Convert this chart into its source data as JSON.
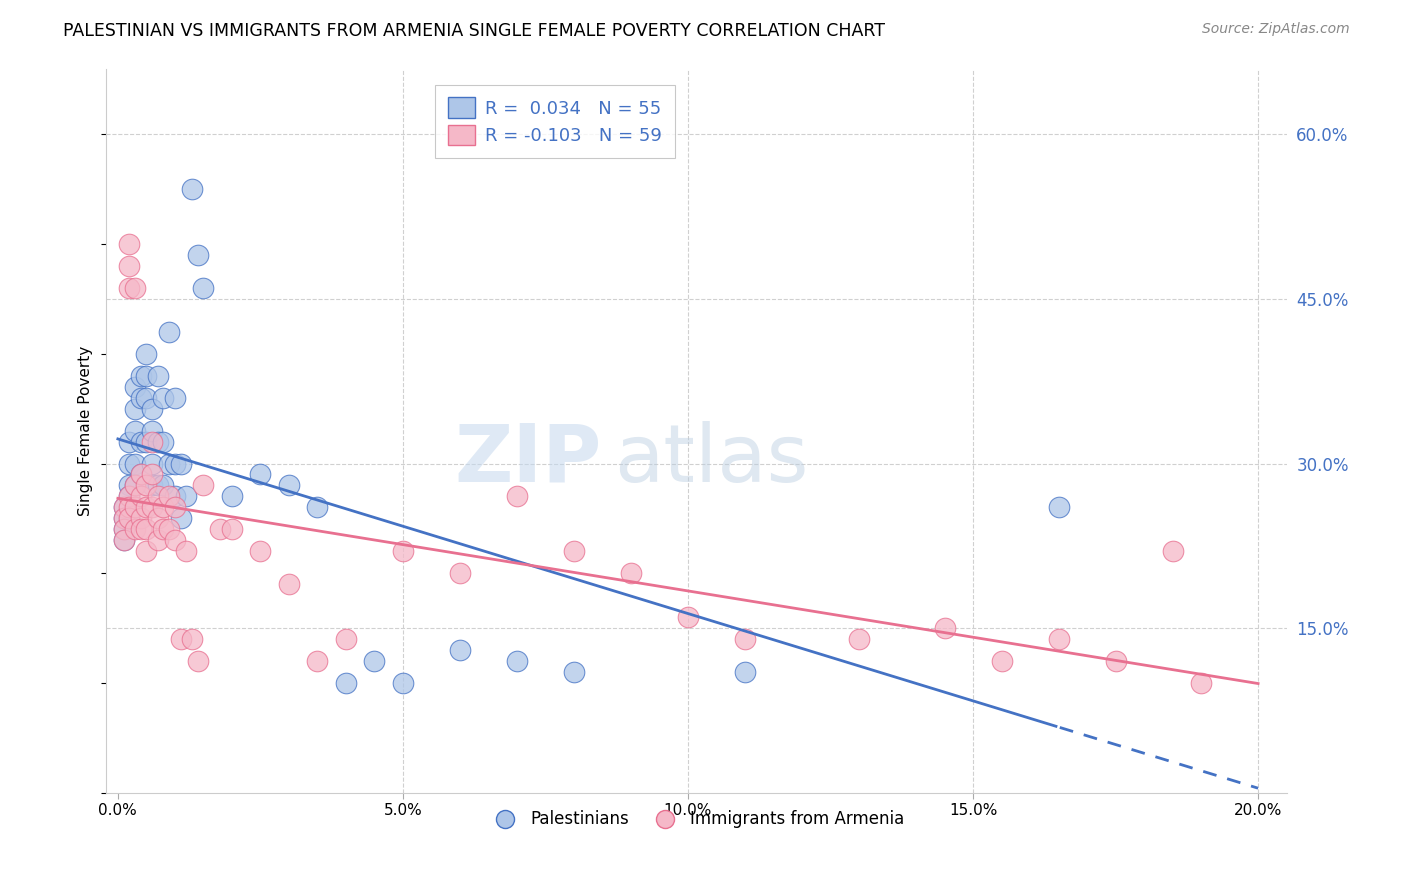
{
  "title": "PALESTINIAN VS IMMIGRANTS FROM ARMENIA SINGLE FEMALE POVERTY CORRELATION CHART",
  "source": "Source: ZipAtlas.com",
  "ylabel": "Single Female Poverty",
  "y_ticks": [
    0.15,
    0.3,
    0.45,
    0.6
  ],
  "y_tick_labels": [
    "15.0%",
    "30.0%",
    "45.0%",
    "60.0%"
  ],
  "x_ticks": [
    0.0,
    0.05,
    0.1,
    0.15,
    0.2
  ],
  "x_tick_labels": [
    "0.0%",
    "5.0%",
    "10.0%",
    "15.0%",
    "20.0%"
  ],
  "xlim": [
    -0.002,
    0.205
  ],
  "ylim": [
    0.0,
    0.66
  ],
  "blue_R": 0.034,
  "blue_N": 55,
  "pink_R": -0.103,
  "pink_N": 59,
  "blue_color": "#aec6e8",
  "pink_color": "#f5b8c8",
  "blue_line_color": "#4472c4",
  "pink_line_color": "#e87090",
  "legend_label_blue": "Palestinians",
  "legend_label_pink": "Immigrants from Armenia",
  "watermark_zip": "ZIP",
  "watermark_atlas": "atlas",
  "blue_x": [
    0.001,
    0.001,
    0.001,
    0.001,
    0.002,
    0.002,
    0.002,
    0.002,
    0.002,
    0.003,
    0.003,
    0.003,
    0.003,
    0.003,
    0.004,
    0.004,
    0.004,
    0.004,
    0.005,
    0.005,
    0.005,
    0.005,
    0.006,
    0.006,
    0.006,
    0.006,
    0.007,
    0.007,
    0.007,
    0.008,
    0.008,
    0.008,
    0.009,
    0.009,
    0.01,
    0.01,
    0.01,
    0.011,
    0.011,
    0.012,
    0.013,
    0.014,
    0.015,
    0.02,
    0.025,
    0.03,
    0.035,
    0.04,
    0.045,
    0.05,
    0.06,
    0.07,
    0.08,
    0.11,
    0.165
  ],
  "blue_y": [
    0.26,
    0.25,
    0.24,
    0.23,
    0.32,
    0.3,
    0.28,
    0.27,
    0.25,
    0.37,
    0.35,
    0.33,
    0.3,
    0.28,
    0.38,
    0.36,
    0.32,
    0.29,
    0.4,
    0.38,
    0.36,
    0.32,
    0.35,
    0.33,
    0.3,
    0.28,
    0.38,
    0.32,
    0.28,
    0.36,
    0.32,
    0.28,
    0.42,
    0.3,
    0.36,
    0.3,
    0.27,
    0.3,
    0.25,
    0.27,
    0.55,
    0.49,
    0.46,
    0.27,
    0.29,
    0.28,
    0.26,
    0.1,
    0.12,
    0.1,
    0.13,
    0.12,
    0.11,
    0.11,
    0.26
  ],
  "pink_x": [
    0.001,
    0.001,
    0.001,
    0.001,
    0.002,
    0.002,
    0.002,
    0.002,
    0.002,
    0.002,
    0.003,
    0.003,
    0.003,
    0.003,
    0.004,
    0.004,
    0.004,
    0.004,
    0.005,
    0.005,
    0.005,
    0.005,
    0.006,
    0.006,
    0.006,
    0.007,
    0.007,
    0.007,
    0.008,
    0.008,
    0.009,
    0.009,
    0.01,
    0.01,
    0.011,
    0.012,
    0.013,
    0.014,
    0.015,
    0.018,
    0.02,
    0.025,
    0.03,
    0.035,
    0.04,
    0.05,
    0.06,
    0.07,
    0.08,
    0.09,
    0.1,
    0.11,
    0.13,
    0.145,
    0.155,
    0.165,
    0.175,
    0.185,
    0.19
  ],
  "pink_y": [
    0.26,
    0.25,
    0.24,
    0.23,
    0.5,
    0.48,
    0.46,
    0.27,
    0.26,
    0.25,
    0.46,
    0.28,
    0.26,
    0.24,
    0.29,
    0.27,
    0.25,
    0.24,
    0.28,
    0.26,
    0.24,
    0.22,
    0.32,
    0.29,
    0.26,
    0.27,
    0.25,
    0.23,
    0.26,
    0.24,
    0.27,
    0.24,
    0.26,
    0.23,
    0.14,
    0.22,
    0.14,
    0.12,
    0.28,
    0.24,
    0.24,
    0.22,
    0.19,
    0.12,
    0.14,
    0.22,
    0.2,
    0.27,
    0.22,
    0.2,
    0.16,
    0.14,
    0.14,
    0.15,
    0.12,
    0.14,
    0.12,
    0.22,
    0.1
  ]
}
